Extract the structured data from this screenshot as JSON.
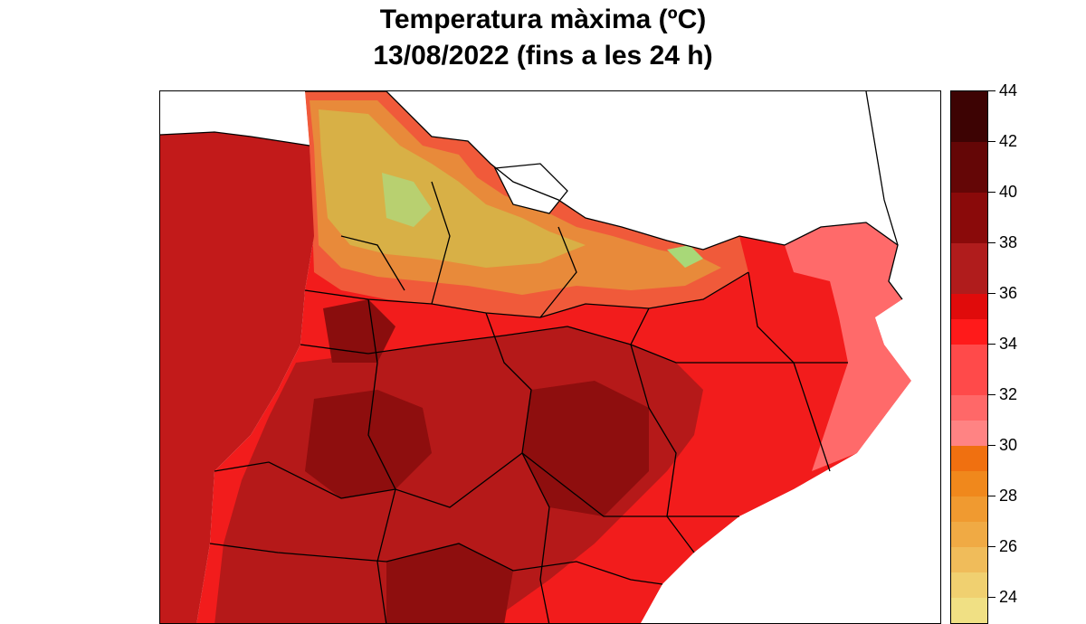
{
  "title": {
    "line1": "Temperatura màxima (ºC)",
    "line2": "13/08/2022 (fins a les 24 h)"
  },
  "legend": {
    "unit": "ºC",
    "ticks": [
      "44",
      "42",
      "40",
      "38",
      "36",
      "34",
      "32",
      "30",
      "28",
      "26",
      "24"
    ],
    "bands": [
      {
        "from": 42,
        "to": 44,
        "color": "#3d0303"
      },
      {
        "from": 40,
        "to": 42,
        "color": "#640606"
      },
      {
        "from": 38,
        "to": 40,
        "color": "#8a0a0a"
      },
      {
        "from": 36,
        "to": 38,
        "color": "#b01c1c"
      },
      {
        "from": 35,
        "to": 36,
        "color": "#e00b0b"
      },
      {
        "from": 34,
        "to": 35,
        "color": "#ff1a1a"
      },
      {
        "from": 32,
        "to": 34,
        "color": "#ff4a4a"
      },
      {
        "from": 31,
        "to": 32,
        "color": "#ff6868"
      },
      {
        "from": 30,
        "to": 31,
        "color": "#ff8383"
      },
      {
        "from": 29,
        "to": 30,
        "color": "#f07010"
      },
      {
        "from": 28,
        "to": 29,
        "color": "#f0881c"
      },
      {
        "from": 27,
        "to": 28,
        "color": "#f09a30"
      },
      {
        "from": 26,
        "to": 27,
        "color": "#f0aa44"
      },
      {
        "from": 25,
        "to": 26,
        "color": "#f0bc5a"
      },
      {
        "from": 24,
        "to": 25,
        "color": "#f0d070"
      },
      {
        "from": 22,
        "to": 24,
        "color": "#f0e084"
      }
    ]
  },
  "colors": {
    "temp_34": "#f52020",
    "temp_36": "#c51818",
    "temp_38": "#a21414",
    "temp_40": "#820c0c",
    "temp_31": "#ff6a6a",
    "temp_28": "#f09030",
    "temp_26": "#d8b040",
    "temp_low": "#90e090",
    "border": "#000000"
  }
}
